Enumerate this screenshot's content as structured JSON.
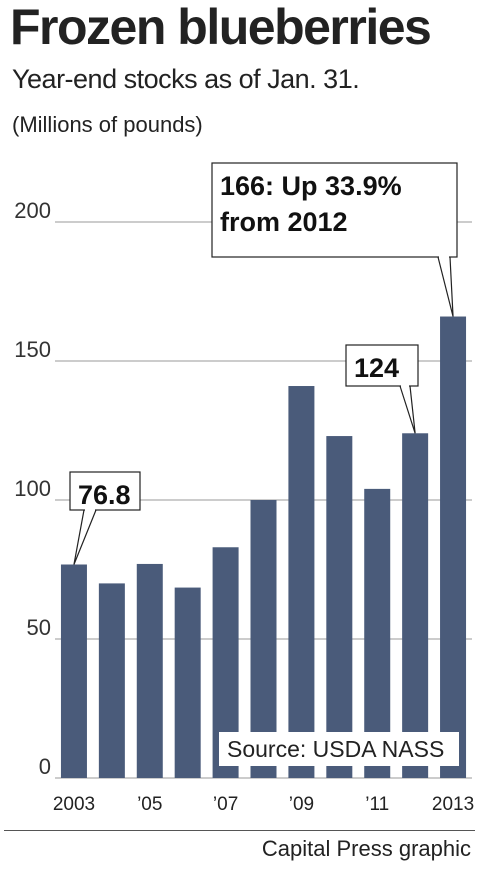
{
  "chart_data": {
    "type": "bar",
    "title": "Frozen blueberries",
    "subtitle": "Year-end stocks as of Jan. 31.",
    "units": "(Millions of pounds)",
    "categories": [
      "2003",
      "2004",
      "2005",
      "2006",
      "2007",
      "2008",
      "2009",
      "2010",
      "2011",
      "2012",
      "2013"
    ],
    "tick_labels": [
      "2003",
      "",
      "’05",
      "",
      "’07",
      "",
      "’09",
      "",
      "’11",
      "",
      "2013"
    ],
    "values": [
      76.8,
      70,
      77,
      68.5,
      83,
      100,
      141,
      123,
      104,
      124,
      166
    ],
    "ylim": [
      0,
      210
    ],
    "yticks": [
      0,
      50,
      100,
      150,
      200
    ],
    "ytick_labels": [
      "0",
      "50",
      "100",
      "150",
      "200"
    ],
    "grid": true,
    "bar_color": "#4a5b7a",
    "annotations": [
      {
        "category": "2003",
        "lines": [
          "76.8"
        ]
      },
      {
        "category": "2012",
        "lines": [
          "124"
        ]
      },
      {
        "category": "2013",
        "lines": [
          "166: Up 33.9%",
          "from 2012"
        ]
      }
    ]
  },
  "source": "Source: USDA NASS",
  "credit": "Capital Press graphic"
}
